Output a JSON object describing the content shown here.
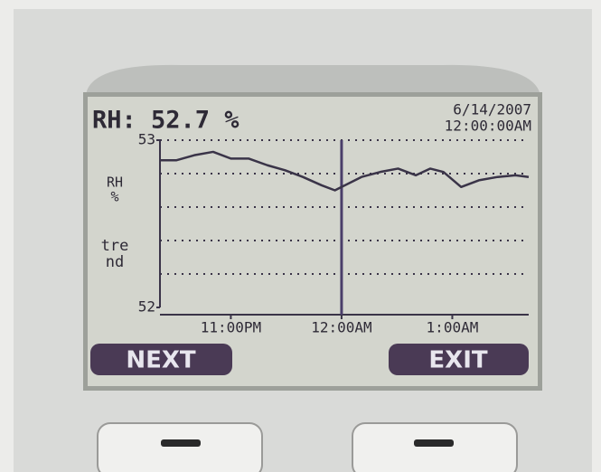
{
  "header": {
    "reading": "RH: 52.7 %",
    "date": "6/14/2007",
    "time": "12:00:00AM"
  },
  "buttons": [
    "NEXT",
    "EXIT"
  ],
  "chart_data": {
    "type": "line",
    "ylabel": [
      "RH",
      "%"
    ],
    "ylabel2": [
      "tre",
      "nd"
    ],
    "x": [
      22.36,
      22.51,
      22.67,
      22.84,
      23,
      23.16,
      23.33,
      23.49,
      23.65,
      23.82,
      23.94,
      24,
      24.18,
      24.35,
      24.51,
      24.67,
      24.8,
      24.92,
      25.08,
      25.24,
      25.41,
      25.57,
      25.69
    ],
    "series": [
      {
        "name": "RH",
        "color": "#3a3448",
        "values": [
          52.88,
          52.88,
          52.91,
          52.93,
          52.89,
          52.89,
          52.85,
          52.82,
          52.78,
          52.73,
          52.7,
          52.72,
          52.78,
          52.81,
          52.83,
          52.79,
          52.83,
          52.81,
          52.72,
          52.76,
          52.78,
          52.79,
          52.78
        ]
      }
    ],
    "xlim": [
      22.36,
      25.69
    ],
    "xticks": [
      {
        "value": 23,
        "label": "11:00PM"
      },
      {
        "value": 24,
        "label": "12:00AM"
      },
      {
        "value": 25,
        "label": "1:00AM"
      }
    ],
    "ylim": [
      52,
      53
    ],
    "yticks": [
      52,
      53
    ],
    "ygrid": [
      52.2,
      52.4,
      52.6,
      52.8,
      53
    ],
    "cursor": 24,
    "cursor_color": "#4a3e6a",
    "grid": true
  }
}
